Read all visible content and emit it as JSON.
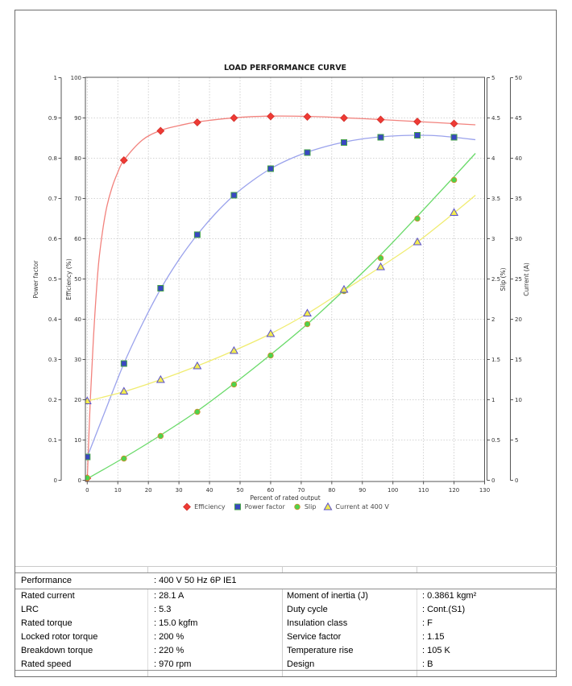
{
  "chart_data": {
    "type": "line",
    "title": "LOAD PERFORMANCE CURVE",
    "xlabel": "Percent of rated output",
    "x_axis": {
      "min": 0,
      "max": 130,
      "tick_step": 10
    },
    "grid": true,
    "legend_position": "bottom",
    "axes": {
      "power_factor": {
        "label": "Power factor",
        "min": 0,
        "max": 1,
        "tick_step": 0.1,
        "side": "left"
      },
      "efficiency": {
        "label": "Efficiency (%)",
        "min": 0,
        "max": 100,
        "tick_step": 10,
        "side": "left"
      },
      "slip": {
        "label": "Slip (%)",
        "min": 0,
        "max": 5,
        "tick_step": 0.5,
        "side": "right"
      },
      "current": {
        "label": "Current (A)",
        "min": 0,
        "max": 50,
        "tick_step": 5,
        "side": "right"
      }
    },
    "series": [
      {
        "name": "Efficiency",
        "axis": "efficiency",
        "marker": "diamond",
        "marker_fill": "#ee3a34",
        "marker_stroke": "#d32f2a",
        "line_color": "#f2827d",
        "points_x": [
          0,
          12,
          24,
          36,
          48,
          60,
          72,
          84,
          96,
          108,
          120
        ],
        "points_y": [
          0.5,
          79.5,
          86.8,
          88.9,
          90.0,
          90.4,
          90.3,
          90.0,
          89.6,
          89.1,
          88.6
        ],
        "curve_x": [
          0,
          1,
          2,
          3,
          4,
          6,
          8,
          10,
          12,
          18,
          24,
          30,
          36,
          48,
          60,
          72,
          84,
          96,
          108,
          120,
          127
        ],
        "curve_y": [
          0,
          20,
          35,
          47,
          56,
          66.5,
          72.5,
          76.5,
          79.5,
          84.5,
          86.9,
          88.1,
          89.0,
          90.05,
          90.45,
          90.4,
          90.05,
          89.6,
          89.1,
          88.6,
          88.3
        ]
      },
      {
        "name": "Power factor",
        "axis": "power_factor",
        "marker": "square",
        "marker_fill": "#3947c2",
        "marker_stroke": "#43a047",
        "line_color": "#9aa2ec",
        "points_x": [
          0,
          12,
          24,
          36,
          48,
          60,
          72,
          84,
          96,
          108,
          120
        ],
        "points_y": [
          0.058,
          0.29,
          0.477,
          0.61,
          0.708,
          0.774,
          0.814,
          0.839,
          0.852,
          0.857,
          0.852
        ],
        "curve_x": [
          0,
          6,
          12,
          18,
          24,
          30,
          36,
          42,
          48,
          54,
          60,
          66,
          72,
          78,
          84,
          90,
          96,
          102,
          108,
          114,
          120,
          127
        ],
        "curve_y": [
          0.058,
          0.175,
          0.29,
          0.388,
          0.475,
          0.548,
          0.61,
          0.663,
          0.708,
          0.744,
          0.774,
          0.797,
          0.815,
          0.829,
          0.84,
          0.848,
          0.853,
          0.856,
          0.857,
          0.856,
          0.852,
          0.846
        ]
      },
      {
        "name": "Slip",
        "axis": "slip",
        "marker": "circle",
        "marker_fill": "#4cd44c",
        "marker_stroke": "#cf8f2e",
        "line_color": "#69da69",
        "points_x": [
          0,
          12,
          24,
          36,
          48,
          60,
          72,
          84,
          96,
          108,
          120
        ],
        "points_y": [
          0.03,
          0.27,
          0.55,
          0.85,
          1.19,
          1.55,
          1.94,
          2.35,
          2.76,
          3.25,
          3.73
        ],
        "curve_x": [
          0,
          12,
          24,
          36,
          48,
          60,
          72,
          84,
          96,
          108,
          120,
          127
        ],
        "curve_y": [
          0.02,
          0.28,
          0.56,
          0.86,
          1.2,
          1.56,
          1.94,
          2.36,
          2.8,
          3.28,
          3.77,
          4.06
        ]
      },
      {
        "name": "Current at 400 V",
        "axis": "current",
        "marker": "triangle",
        "marker_fill": "#f3ec4f",
        "marker_stroke": "#5a50cc",
        "line_color": "#f0ec70",
        "points_x": [
          0,
          12,
          24,
          36,
          48,
          60,
          72,
          84,
          96,
          108,
          120
        ],
        "points_y": [
          9.85,
          11.05,
          12.5,
          14.2,
          16.1,
          18.2,
          20.75,
          23.7,
          26.5,
          29.6,
          33.25
        ],
        "curve_x": [
          0,
          12,
          24,
          36,
          48,
          60,
          72,
          84,
          96,
          108,
          120,
          127
        ],
        "curve_y": [
          9.85,
          11.0,
          12.5,
          14.2,
          16.1,
          18.2,
          20.7,
          23.6,
          26.5,
          29.6,
          33.2,
          35.4
        ]
      }
    ]
  },
  "table": {
    "performance": {
      "label": "Performance",
      "value": ": 400 V 50 Hz 6P IE1"
    },
    "left_rows": [
      {
        "label": "Rated current",
        "value": ": 28.1 A"
      },
      {
        "label": "LRC",
        "value": ": 5.3"
      },
      {
        "label": "Rated torque",
        "value": ": 15.0 kgfm"
      },
      {
        "label": "Locked rotor torque",
        "value": ": 200 %"
      },
      {
        "label": "Breakdown torque",
        "value": ": 220 %"
      },
      {
        "label": "Rated speed",
        "value": ": 970 rpm"
      }
    ],
    "right_rows": [
      {
        "label": "Moment of inertia (J)",
        "value": ": 0.3861 kgm²"
      },
      {
        "label": "Duty cycle",
        "value": ": Cont.(S1)"
      },
      {
        "label": "Insulation class",
        "value": ": F"
      },
      {
        "label": "Service factor",
        "value": ": 1.15"
      },
      {
        "label": "Temperature rise",
        "value": ": 105 K"
      },
      {
        "label": "Design",
        "value": ": B"
      }
    ]
  }
}
